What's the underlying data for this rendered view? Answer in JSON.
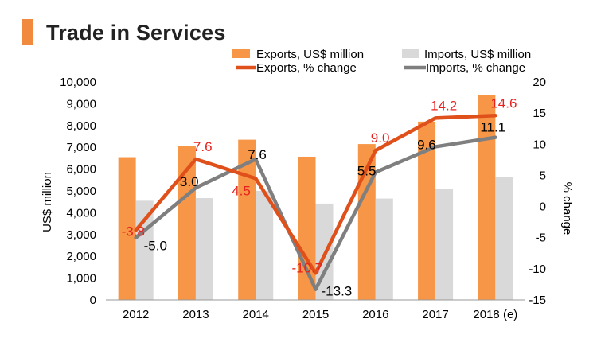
{
  "title": "Trade in Services",
  "colors": {
    "exports_bar": "#f79646",
    "imports_bar": "#d9d9d9",
    "exports_line": "#e0501b",
    "imports_line": "#7f7f7f",
    "exports_label": "#e8211e",
    "imports_label": "#000000",
    "title_accent": "#f28a3d"
  },
  "chart_data": {
    "type": "bar",
    "title": "Trade in Services",
    "categories": [
      "2012",
      "2013",
      "2014",
      "2015",
      "2016",
      "2017",
      "2018 (e)"
    ],
    "ylabel": "US$ million",
    "ylim": [
      0,
      10000
    ],
    "yticks": [
      "0",
      "1,000",
      "2,000",
      "3,000",
      "4,000",
      "5,000",
      "6,000",
      "7,000",
      "8,000",
      "9,000",
      "10,000"
    ],
    "y2label": "% change",
    "y2lim": [
      -15,
      20
    ],
    "y2ticks": [
      "-15",
      "-10",
      "-5",
      "0",
      "5",
      "10",
      "15",
      "20"
    ],
    "legend_position": "top-right",
    "series": [
      {
        "name": "Exports, US$ million",
        "type": "bar",
        "axis": "left",
        "values": [
          6550,
          7050,
          7350,
          6570,
          7150,
          8180,
          9380
        ]
      },
      {
        "name": "Imports, US$ million",
        "type": "bar",
        "axis": "left",
        "values": [
          4550,
          4670,
          5000,
          4420,
          4650,
          5100,
          5650
        ]
      },
      {
        "name": "Exports, % change",
        "type": "line",
        "axis": "right",
        "values": [
          -3.8,
          7.6,
          4.5,
          -10.7,
          9.0,
          14.2,
          14.6
        ],
        "labels": [
          "-3.8",
          "7.6",
          "4.5",
          "-10.7",
          "9.0",
          "14.2",
          "14.6"
        ]
      },
      {
        "name": "Imports, % change",
        "type": "line",
        "axis": "right",
        "values": [
          -5.0,
          3.0,
          7.6,
          -13.3,
          5.5,
          9.6,
          11.1
        ],
        "labels": [
          "-5.0",
          "3.0",
          "7.6",
          "-13.3",
          "5.5",
          "9.6",
          "11.1"
        ]
      }
    ]
  }
}
